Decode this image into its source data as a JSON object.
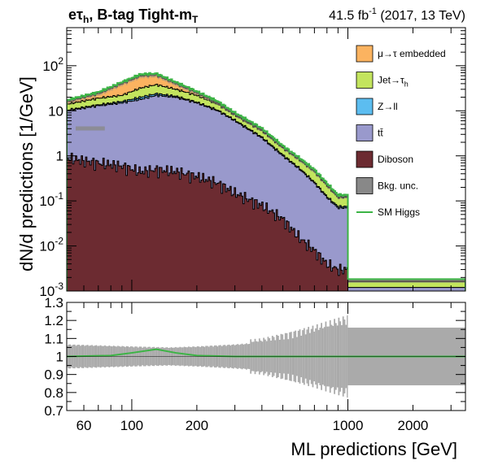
{
  "header": {
    "channel": "eτh, B-tag Tight-mT",
    "lumi": "41.5 fb⁻¹ (2017, 13 TeV)"
  },
  "chart_data": [
    {
      "type": "area",
      "panel": "main",
      "ylabel": "dN/d predictions [1/GeV]",
      "yscale": "log",
      "ylim": [
        0.001,
        700
      ],
      "xscale": "log",
      "xlim": [
        50,
        3500
      ],
      "y_tick_labels": [
        "10⁻³",
        "10⁻²",
        "10⁻¹",
        "1",
        "10",
        "10²"
      ],
      "legend": [
        {
          "label": "μ→τ embedded",
          "color": "#fbb360"
        },
        {
          "label": "Jet→τh",
          "color": "#c3e45e"
        },
        {
          "label": "Z→ll",
          "color": "#5cbdf0"
        },
        {
          "label": "tt̄",
          "color": "#9999cc"
        },
        {
          "label": "Diboson",
          "color": "#6c2b31"
        },
        {
          "label": "Bkg. unc.",
          "color": "#888888"
        },
        {
          "label": "SM Higgs",
          "color": "#3cb445"
        }
      ],
      "stack_control_points": [
        {
          "x": 50,
          "diboson": 0.9,
          "ttbar": 10,
          "zll": 10.3,
          "jet": 14,
          "embedded": 16
        },
        {
          "x": 70,
          "diboson": 0.7,
          "ttbar": 13,
          "zll": 13.5,
          "jet": 19,
          "embedded": 24
        },
        {
          "x": 90,
          "diboson": 0.6,
          "ttbar": 15,
          "zll": 16,
          "jet": 22,
          "embedded": 40
        },
        {
          "x": 110,
          "diboson": 0.45,
          "ttbar": 18,
          "zll": 20,
          "jet": 32,
          "embedded": 60
        },
        {
          "x": 130,
          "diboson": 0.5,
          "ttbar": 22,
          "zll": 24,
          "jet": 38,
          "embedded": 62
        },
        {
          "x": 160,
          "diboson": 0.45,
          "ttbar": 20,
          "zll": 21,
          "jet": 30,
          "embedded": 40
        },
        {
          "x": 200,
          "diboson": 0.35,
          "ttbar": 15,
          "zll": 15.5,
          "jet": 22,
          "embedded": 25
        },
        {
          "x": 250,
          "diboson": 0.25,
          "ttbar": 10,
          "zll": 10.3,
          "jet": 14,
          "embedded": 15
        },
        {
          "x": 300,
          "diboson": 0.15,
          "ttbar": 6,
          "zll": 6.2,
          "jet": 8,
          "embedded": 8.4
        },
        {
          "x": 400,
          "diboson": 0.08,
          "ttbar": 2.5,
          "zll": 2.6,
          "jet": 3.6,
          "embedded": 3.8
        },
        {
          "x": 500,
          "diboson": 0.04,
          "ttbar": 1.0,
          "zll": 1.05,
          "jet": 1.5,
          "embedded": 1.55
        },
        {
          "x": 600,
          "diboson": 0.015,
          "ttbar": 0.5,
          "zll": 0.52,
          "jet": 0.8,
          "embedded": 0.82
        },
        {
          "x": 700,
          "diboson": 0.008,
          "ttbar": 0.25,
          "zll": 0.26,
          "jet": 0.45,
          "embedded": 0.46
        },
        {
          "x": 800,
          "diboson": 0.004,
          "ttbar": 0.12,
          "zll": 0.125,
          "jet": 0.22,
          "embedded": 0.23
        },
        {
          "x": 900,
          "diboson": 0.003,
          "ttbar": 0.07,
          "zll": 0.075,
          "jet": 0.12,
          "embedded": 0.125
        },
        {
          "x": 1000,
          "diboson": 0.001,
          "ttbar": 0.0012,
          "zll": 0.0012,
          "jet": 0.0016,
          "embedded": 0.0017
        },
        {
          "x": 3500,
          "diboson": 0.001,
          "ttbar": 0.0012,
          "zll": 0.0012,
          "jet": 0.0016,
          "embedded": 0.0017
        }
      ]
    },
    {
      "type": "area",
      "panel": "ratio",
      "xlabel": "ML predictions [GeV]",
      "ylim": [
        0.7,
        1.3
      ],
      "y_ticks": [
        0.7,
        0.8,
        0.9,
        1.0,
        1.1,
        1.2,
        1.3
      ],
      "y_tick_labels": [
        "0.7",
        "0.8",
        "0.9",
        "1",
        "1.1",
        "1.2",
        "1.3"
      ],
      "x_ticks": [
        100,
        200,
        1000,
        2000
      ],
      "x_tick_labels": [
        "100",
        "200",
        "1000",
        "2000"
      ],
      "x_label_extra": "60",
      "unc_control_points": [
        {
          "x": 50,
          "half_width": 0.06
        },
        {
          "x": 100,
          "half_width": 0.05
        },
        {
          "x": 150,
          "half_width": 0.045
        },
        {
          "x": 200,
          "half_width": 0.05
        },
        {
          "x": 300,
          "half_width": 0.06
        },
        {
          "x": 400,
          "half_width": 0.07
        },
        {
          "x": 500,
          "half_width": 0.09
        },
        {
          "x": 700,
          "half_width": 0.12
        },
        {
          "x": 1000,
          "half_width": 0.16
        },
        {
          "x": 3500,
          "half_width": 0.16
        }
      ],
      "higgs_ratio_points": [
        {
          "x": 50,
          "y": 1.0
        },
        {
          "x": 80,
          "y": 1.005
        },
        {
          "x": 100,
          "y": 1.02
        },
        {
          "x": 130,
          "y": 1.04
        },
        {
          "x": 160,
          "y": 1.02
        },
        {
          "x": 200,
          "y": 1.005
        },
        {
          "x": 300,
          "y": 1.0
        },
        {
          "x": 3500,
          "y": 1.0
        }
      ]
    }
  ]
}
